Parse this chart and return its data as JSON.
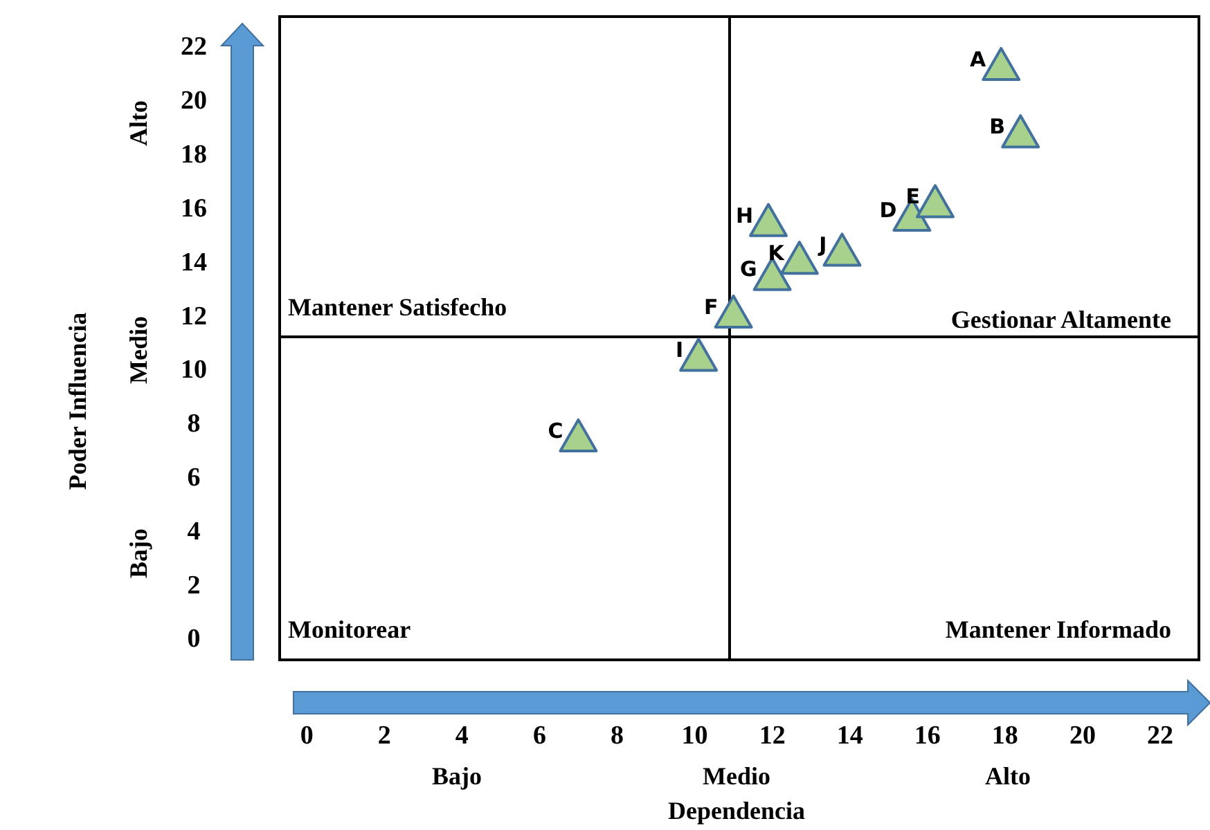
{
  "chart_data": {
    "type": "scatter",
    "xlabel": "Dependencia",
    "ylabel": "Poder Influencia",
    "x": [
      17.9,
      18.4,
      7.0,
      15.6,
      16.2,
      11.0,
      12.0,
      11.9,
      10.1,
      13.8,
      12.7
    ],
    "values": [
      21.3,
      18.8,
      7.5,
      15.7,
      16.2,
      12.1,
      13.5,
      15.5,
      10.5,
      14.4,
      14.1
    ],
    "color": "#a9d18e",
    "marker": "triangle",
    "xlim": [
      -0.7,
      23.0
    ],
    "ylim": [
      -0.7,
      23.2
    ],
    "xticks": [
      0,
      2,
      4,
      6,
      8,
      10,
      12,
      14,
      16,
      18,
      20,
      22
    ],
    "yticks": [
      0,
      2,
      4,
      6,
      8,
      10,
      12,
      14,
      16,
      18,
      20,
      22
    ],
    "grid": false,
    "ref_lines": [
      {
        "axis": "x",
        "value": 10.9
      },
      {
        "axis": "y",
        "value": 11.3
      }
    ],
    "annotations": [
      "Mantener Satisfecho",
      "Gestionar Altamente",
      "Monitorear",
      "Mantener Informado",
      "Bajo",
      "Medio",
      "Alto",
      "Bajo",
      "Medio",
      "Alto",
      {
        "text": "A",
        "x": 17.9,
        "y": 21.3
      },
      {
        "text": "B",
        "x": 18.4,
        "y": 18.8
      },
      {
        "text": "C",
        "x": 7.0,
        "y": 7.5
      },
      {
        "text": "D",
        "x": 15.6,
        "y": 15.7
      },
      {
        "text": "E",
        "x": 16.2,
        "y": 16.2
      },
      {
        "text": "F",
        "x": 11.0,
        "y": 12.1
      },
      {
        "text": "G",
        "x": 12.0,
        "y": 13.5
      },
      {
        "text": "H",
        "x": 11.9,
        "y": 15.5
      },
      {
        "text": "I",
        "x": 10.1,
        "y": 10.5
      },
      {
        "text": "J",
        "x": 13.8,
        "y": 14.4
      },
      {
        "text": "K",
        "x": 12.7,
        "y": 14.1
      }
    ]
  }
}
